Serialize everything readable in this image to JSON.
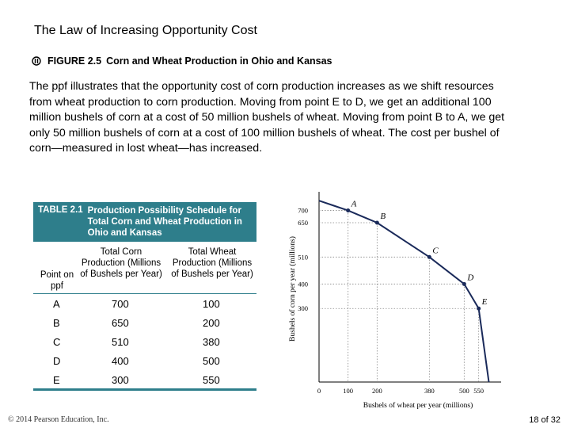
{
  "slide": {
    "title": "The Law of Increasing Opportunity Cost",
    "figure_label": "FIGURE 2.5",
    "figure_title": "Corn and Wheat Production in Ohio and Kansas",
    "paragraph": "The ppf illustrates that the opportunity cost of corn production increases as we shift resources from wheat production to corn production. Moving from point E to D, we get an additional 100 million bushels of corn at a cost of 50 million bushels of wheat. Moving from point B to A, we get only 50 million bushels of corn at a cost of 100 million bushels of wheat. The cost per bushel of corn—measured in lost wheat—has increased.",
    "copyright": "© 2014 Pearson Education, Inc.",
    "page": "18 of 32"
  },
  "table": {
    "number": "TABLE 2.1",
    "name": "Production Possibility Schedule for Total Corn and Wheat Production in Ohio and Kansas",
    "col_point": "Point on ppf",
    "col_corn": "Total Corn Production (Millions of Bushels per Year)",
    "col_wheat": "Total Wheat Production (Millions of Bushels per Year)",
    "rows": [
      {
        "point": "A",
        "corn": "700",
        "wheat": "100"
      },
      {
        "point": "B",
        "corn": "650",
        "wheat": "200"
      },
      {
        "point": "C",
        "corn": "510",
        "wheat": "380"
      },
      {
        "point": "D",
        "corn": "400",
        "wheat": "500"
      },
      {
        "point": "E",
        "corn": "300",
        "wheat": "550"
      }
    ]
  },
  "chart_data": {
    "type": "line",
    "title": "",
    "xlabel": "Bushels of wheat per year (millions)",
    "ylabel": "Bushels of corn per year (millions)",
    "xlim": [
      0,
      600
    ],
    "ylim": [
      0,
      760
    ],
    "x_ticks": [
      "0",
      "100",
      "200",
      "380",
      "500",
      "550"
    ],
    "y_ticks": [
      "700",
      "650",
      "510",
      "400",
      "300"
    ],
    "points": [
      {
        "label": "A",
        "x": 100,
        "y": 700
      },
      {
        "label": "B",
        "x": 200,
        "y": 650
      },
      {
        "label": "C",
        "x": 380,
        "y": 510
      },
      {
        "label": "D",
        "x": 500,
        "y": 400
      },
      {
        "label": "E",
        "x": 550,
        "y": 300
      }
    ],
    "curve": [
      [
        0,
        740
      ],
      [
        100,
        700
      ],
      [
        200,
        650
      ],
      [
        380,
        510
      ],
      [
        500,
        400
      ],
      [
        550,
        300
      ],
      [
        585,
        0
      ]
    ],
    "grid": "dotted guides at points",
    "curve_color": "#1a2a5a"
  }
}
